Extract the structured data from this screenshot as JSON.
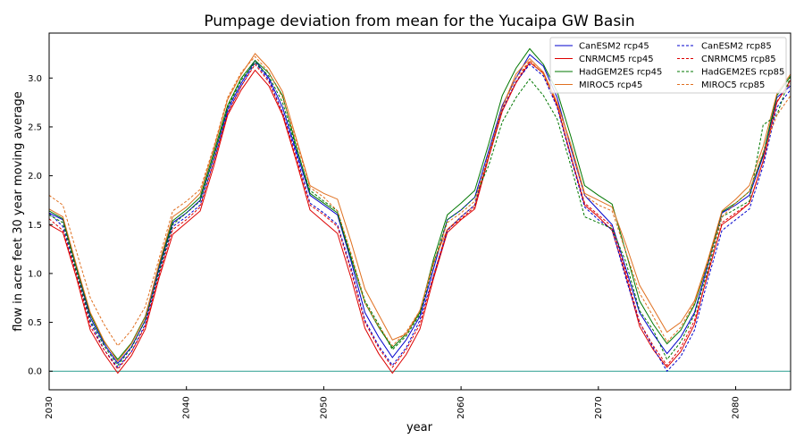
{
  "chart_data": {
    "type": "line",
    "title": "Pumpage deviation from mean for the Yucaipa GW Basin",
    "xlabel": "year",
    "ylabel": "flow in acre feet 30 year moving average",
    "xlim": [
      2030,
      2084
    ],
    "ylim": [
      -0.19,
      3.46
    ],
    "xticks": [
      2030,
      2040,
      2050,
      2060,
      2070,
      2080
    ],
    "xtick_labels": [
      "2030",
      "2040",
      "2050",
      "2060",
      "2070",
      "2080"
    ],
    "yticks": [
      0.0,
      0.5,
      1.0,
      1.5,
      2.0,
      2.5,
      3.0
    ],
    "ytick_labels": [
      "0.0",
      "0.5",
      "1.0",
      "1.5",
      "2.0",
      "2.5",
      "3.0"
    ],
    "grid": false,
    "legend_position": "top-right",
    "legend_columns": 2,
    "reference_line": {
      "y": 0.0,
      "color": "#2a9d8f"
    },
    "x": [
      2030,
      2031,
      2032,
      2033,
      2034,
      2035,
      2036,
      2037,
      2038,
      2039,
      2040,
      2041,
      2042,
      2043,
      2044,
      2045,
      2046,
      2047,
      2048,
      2049,
      2050,
      2051,
      2052,
      2053,
      2054,
      2055,
      2056,
      2057,
      2058,
      2059,
      2060,
      2061,
      2062,
      2063,
      2064,
      2065,
      2066,
      2067,
      2068,
      2069,
      2070,
      2071,
      2072,
      2073,
      2074,
      2075,
      2076,
      2077,
      2078,
      2079,
      2080,
      2081,
      2082,
      2083,
      2084
    ],
    "series": [
      {
        "name": "CanESM2 rcp45",
        "color": "#0000cc",
        "dashed": false,
        "values": [
          1.62,
          1.55,
          1.05,
          0.55,
          0.28,
          0.08,
          0.25,
          0.52,
          1.05,
          1.52,
          1.62,
          1.75,
          2.2,
          2.68,
          2.95,
          3.18,
          3.0,
          2.7,
          2.25,
          1.8,
          1.7,
          1.6,
          1.12,
          0.6,
          0.35,
          0.14,
          0.32,
          0.56,
          1.05,
          1.55,
          1.65,
          1.78,
          2.25,
          2.72,
          3.0,
          3.24,
          3.12,
          2.8,
          2.28,
          1.8,
          1.65,
          1.5,
          1.05,
          0.6,
          0.38,
          0.18,
          0.35,
          0.6,
          1.1,
          1.62,
          1.7,
          1.8,
          2.2,
          2.8,
          2.92
        ]
      },
      {
        "name": "CNRMCM5 rcp45",
        "color": "#dd0000",
        "dashed": false,
        "values": [
          1.5,
          1.42,
          0.95,
          0.42,
          0.18,
          -0.02,
          0.16,
          0.43,
          0.95,
          1.4,
          1.52,
          1.64,
          2.1,
          2.62,
          2.88,
          3.08,
          2.92,
          2.62,
          2.15,
          1.65,
          1.53,
          1.41,
          0.95,
          0.44,
          0.18,
          -0.02,
          0.17,
          0.43,
          0.95,
          1.42,
          1.55,
          1.66,
          2.18,
          2.66,
          2.95,
          3.16,
          3.05,
          2.72,
          2.2,
          1.7,
          1.58,
          1.44,
          0.98,
          0.46,
          0.22,
          0.04,
          0.2,
          0.48,
          1.02,
          1.5,
          1.6,
          1.72,
          2.15,
          2.75,
          2.98
        ]
      },
      {
        "name": "HadGEM2ES rcp45",
        "color": "#007700",
        "dashed": false,
        "values": [
          1.64,
          1.56,
          1.06,
          0.58,
          0.3,
          0.12,
          0.29,
          0.56,
          1.08,
          1.54,
          1.65,
          1.78,
          2.24,
          2.72,
          3.0,
          3.18,
          3.05,
          2.82,
          2.3,
          1.82,
          1.72,
          1.62,
          1.15,
          0.7,
          0.45,
          0.24,
          0.38,
          0.6,
          1.15,
          1.6,
          1.72,
          1.85,
          2.32,
          2.82,
          3.1,
          3.3,
          3.14,
          2.86,
          2.4,
          1.9,
          1.8,
          1.71,
          1.22,
          0.72,
          0.48,
          0.28,
          0.42,
          0.68,
          1.12,
          1.63,
          1.72,
          1.84,
          2.22,
          2.82,
          3.02
        ]
      },
      {
        "name": "MIROC5 rcp45",
        "color": "#e07020",
        "dashed": false,
        "values": [
          1.66,
          1.58,
          1.08,
          0.6,
          0.31,
          0.1,
          0.28,
          0.55,
          1.1,
          1.58,
          1.68,
          1.82,
          2.28,
          2.78,
          3.04,
          3.25,
          3.1,
          2.86,
          2.38,
          1.9,
          1.82,
          1.76,
          1.32,
          0.84,
          0.58,
          0.32,
          0.38,
          0.62,
          1.12,
          1.45,
          1.58,
          1.7,
          2.2,
          2.7,
          3.04,
          3.2,
          3.06,
          2.75,
          2.32,
          1.82,
          1.75,
          1.68,
          1.3,
          0.88,
          0.64,
          0.4,
          0.5,
          0.72,
          1.15,
          1.64,
          1.76,
          1.9,
          2.3,
          2.84,
          3.04
        ]
      },
      {
        "name": "CanESM2 rcp85",
        "color": "#0000cc",
        "dashed": true,
        "values": [
          1.62,
          1.48,
          1.0,
          0.5,
          0.22,
          0.04,
          0.2,
          0.48,
          1.0,
          1.48,
          1.58,
          1.7,
          2.15,
          2.65,
          2.92,
          3.16,
          2.98,
          2.65,
          2.22,
          1.72,
          1.62,
          1.5,
          1.05,
          0.52,
          0.26,
          0.06,
          0.24,
          0.52,
          0.98,
          1.44,
          1.58,
          1.7,
          2.2,
          2.68,
          2.96,
          3.14,
          3.02,
          2.7,
          2.18,
          1.68,
          1.55,
          1.45,
          0.95,
          0.5,
          0.24,
          0.0,
          0.15,
          0.42,
          0.95,
          1.44,
          1.55,
          1.66,
          2.1,
          2.7,
          2.88
        ]
      },
      {
        "name": "CNRMCM5 rcp85",
        "color": "#dd0000",
        "dashed": true,
        "values": [
          1.56,
          1.44,
          0.98,
          0.46,
          0.22,
          0.02,
          0.2,
          0.46,
          0.98,
          1.45,
          1.55,
          1.68,
          2.15,
          2.64,
          2.92,
          3.14,
          2.96,
          2.64,
          2.18,
          1.7,
          1.6,
          1.48,
          1.02,
          0.5,
          0.24,
          0.04,
          0.22,
          0.48,
          0.98,
          1.45,
          1.56,
          1.68,
          2.2,
          2.66,
          2.96,
          3.18,
          3.04,
          2.72,
          2.2,
          1.72,
          1.6,
          1.48,
          1.02,
          0.5,
          0.26,
          0.06,
          0.24,
          0.52,
          1.0,
          1.52,
          1.62,
          1.72,
          2.15,
          2.76,
          2.95
        ]
      },
      {
        "name": "HadGEM2ES rcp85",
        "color": "#007700",
        "dashed": true,
        "values": [
          1.6,
          1.52,
          1.02,
          0.52,
          0.26,
          0.06,
          0.24,
          0.52,
          1.02,
          1.5,
          1.62,
          1.74,
          2.2,
          2.7,
          2.98,
          3.16,
          3.02,
          2.75,
          2.28,
          1.85,
          1.74,
          1.64,
          1.18,
          0.72,
          0.48,
          0.22,
          0.36,
          0.58,
          1.1,
          1.55,
          1.65,
          1.78,
          2.1,
          2.55,
          2.8,
          2.99,
          2.82,
          2.58,
          2.1,
          1.58,
          1.52,
          1.46,
          1.12,
          0.62,
          0.42,
          0.12,
          0.3,
          0.58,
          1.05,
          1.58,
          1.66,
          1.74,
          2.52,
          2.62,
          3.02
        ]
      },
      {
        "name": "MIROC5 rcp85",
        "color": "#e07020",
        "dashed": true,
        "values": [
          1.8,
          1.7,
          1.22,
          0.75,
          0.48,
          0.26,
          0.42,
          0.66,
          1.15,
          1.64,
          1.74,
          1.86,
          2.3,
          2.8,
          3.06,
          3.22,
          3.06,
          2.8,
          2.35,
          1.88,
          1.78,
          1.64,
          1.2,
          0.7,
          0.46,
          0.26,
          0.4,
          0.62,
          1.1,
          1.52,
          1.62,
          1.74,
          2.22,
          2.7,
          3.0,
          3.18,
          3.04,
          2.74,
          2.3,
          1.8,
          1.7,
          1.64,
          1.22,
          0.8,
          0.56,
          0.3,
          0.45,
          0.7,
          1.12,
          1.58,
          1.72,
          1.84,
          2.24,
          2.62,
          2.82
        ]
      }
    ]
  }
}
